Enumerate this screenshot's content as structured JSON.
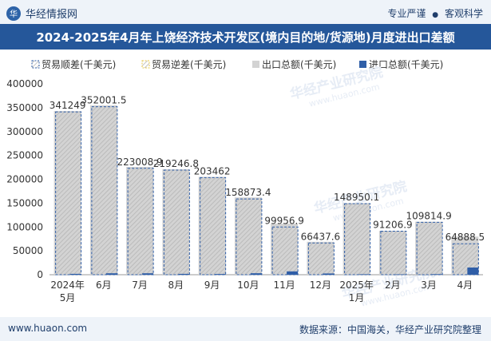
{
  "header": {
    "brand": "华经情报网",
    "brand_icon": "huajing-logo-icon",
    "tag1": "专业严谨",
    "sep": "●",
    "tag2": "客观科学"
  },
  "chart_title": "2024-2025年4月年上饶经济技术开发区(境内目的地/货源地)月度进出口差额",
  "footer": {
    "website": "www.huaon.com",
    "source": "数据来源：中国海关，华经产业研究院整理"
  },
  "watermark": "华经产业研究院",
  "watermark_url": "www.huaon.com",
  "colors": {
    "export_bar": "#d3d3d3",
    "import_bar": "#2f5ea7",
    "surplus_border": "#2f5ea7",
    "deficit_border": "#e8c84a",
    "title_bg": "#25579a"
  },
  "chart_data": {
    "type": "bar",
    "title": "2024-2025年4月年上饶经济技术开发区(境内目的地/货源地)月度进出口差额",
    "categories": [
      "2024年\n5月",
      "6月",
      "7月",
      "8月",
      "9月",
      "10月",
      "11月",
      "12月",
      "2025年\n1月",
      "2月",
      "3月",
      "4月"
    ],
    "series": [
      {
        "name": "贸易顺差(千美元)",
        "values": [
          341249,
          352001.5,
          223008.9,
          219246.8,
          203462,
          158873.4,
          99956.9,
          66437.6,
          148950.1,
          91206.9,
          109814.9,
          64888.5
        ]
      },
      {
        "name": "贸易逆差(千美元)",
        "values": [
          0,
          0,
          0,
          0,
          0,
          0,
          0,
          0,
          0,
          0,
          0,
          0
        ]
      },
      {
        "name": "出口总额(千美元)",
        "values": [
          343000,
          355000,
          226000,
          221000,
          205000,
          162000,
          107000,
          69000,
          150000,
          92000,
          111000,
          80000
        ]
      },
      {
        "name": "进口总额(千美元)",
        "values": [
          1800,
          3000,
          3000,
          1800,
          1500,
          3100,
          7000,
          2600,
          1000,
          800,
          1200,
          15100
        ]
      }
    ],
    "data_labels": [
      "341249",
      "352001.5",
      "223008.9",
      "219246.8",
      "203462",
      "158873.4",
      "99956.9",
      "66437.6",
      "148950.1",
      "91206.9",
      "109814.9",
      "64888.5"
    ],
    "y_ticks": [
      "0",
      "50000",
      "100000",
      "150000",
      "200000",
      "250000",
      "300000",
      "350000",
      "400000"
    ],
    "ylim": [
      0,
      400000
    ],
    "xlabel": "",
    "ylabel": "",
    "legend_position": "top"
  }
}
